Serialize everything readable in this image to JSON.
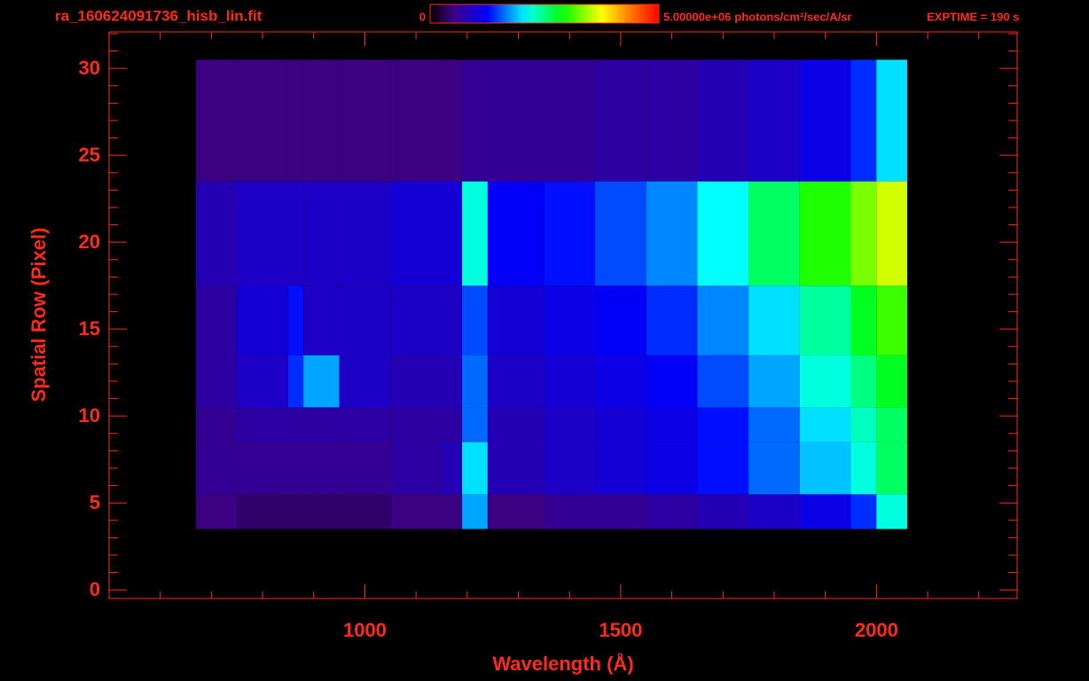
{
  "chart_data": {
    "type": "heatmap",
    "title": "ra_160624091736_hisb_lin.fit",
    "annotation": "EXPTIME = 190 s",
    "colorbar_label": "photons/cm²/sec/A/sr",
    "clim": [
      0,
      5000000
    ],
    "cticks": [
      0,
      {
        "value": 5000000,
        "label": "5.00000e+06"
      }
    ],
    "x_label": "Wavelength (Å)",
    "y_label": "Spatial Row (Pixel)",
    "xlim": [
      500,
      2275
    ],
    "ylim": [
      -0.5,
      32.1
    ],
    "xticks": [
      1000,
      1500,
      2000
    ],
    "yticks": [
      0,
      5,
      10,
      15,
      20,
      25,
      30
    ],
    "xminorticks": [
      600,
      700,
      800,
      900,
      1100,
      1200,
      1300,
      1400,
      1600,
      1700,
      1800,
      1900,
      2100,
      2200
    ],
    "yminorticks": [
      1,
      2,
      3,
      4,
      6,
      7,
      8,
      9,
      11,
      12,
      13,
      14,
      16,
      17,
      18,
      19,
      21,
      22,
      23,
      24,
      26,
      27,
      28,
      29,
      31,
      32
    ],
    "x_bins": [
      670,
      750,
      850,
      880,
      950,
      1050,
      1150,
      1190,
      1240,
      1350,
      1450,
      1550,
      1650,
      1750,
      1850,
      1950,
      2000,
      2060
    ],
    "y_bins": [
      3.5,
      5.5,
      8.5,
      10.5,
      13.5,
      17.5,
      23.5,
      30.5
    ],
    "values": [
      [
        500000,
        400000,
        400000,
        400000,
        400000,
        500000,
        500000,
        1800000,
        500000,
        600000,
        600000,
        700000,
        800000,
        900000,
        1100000,
        1400000,
        2200000
      ],
      [
        600000,
        600000,
        600000,
        600000,
        600000,
        700000,
        800000,
        2000000,
        800000,
        900000,
        1000000,
        1100000,
        1300000,
        1600000,
        1900000,
        2200000,
        2600000
      ],
      [
        600000,
        700000,
        700000,
        700000,
        700000,
        700000,
        700000,
        1600000,
        800000,
        900000,
        1000000,
        1100000,
        1300000,
        1600000,
        2000000,
        2300000,
        2600000
      ],
      [
        700000,
        900000,
        1400000,
        1800000,
        900000,
        800000,
        800000,
        1600000,
        900000,
        1000000,
        1100000,
        1200000,
        1500000,
        1800000,
        2200000,
        2500000,
        2800000
      ],
      [
        700000,
        1000000,
        1300000,
        900000,
        900000,
        900000,
        900000,
        1500000,
        1000000,
        1100000,
        1200000,
        1400000,
        1700000,
        2000000,
        2400000,
        2800000,
        3100000
      ],
      [
        800000,
        900000,
        900000,
        900000,
        900000,
        1000000,
        1000000,
        2200000,
        1200000,
        1300000,
        1500000,
        1700000,
        2100000,
        2600000,
        3000000,
        3300000,
        3600000
      ],
      [
        500000,
        500000,
        500000,
        500000,
        500000,
        500000,
        500000,
        600000,
        600000,
        600000,
        700000,
        700000,
        800000,
        900000,
        1100000,
        1400000,
        2000000
      ]
    ]
  }
}
